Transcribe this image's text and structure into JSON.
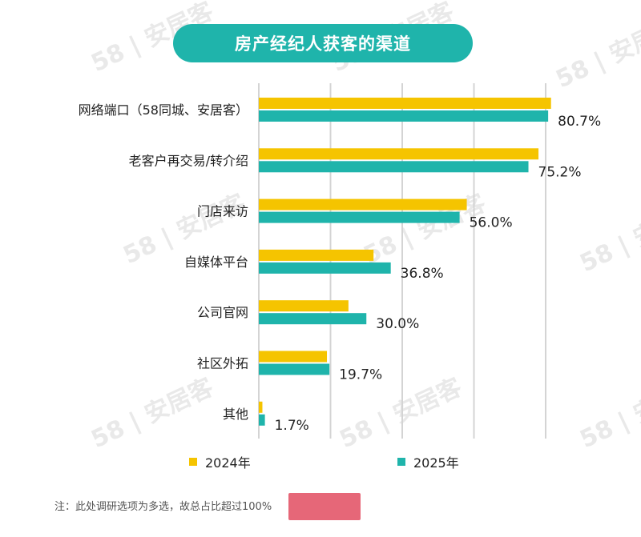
{
  "title": "房产经纪人获客的渠道",
  "watermark": "58 | 安居客",
  "note": "注：此处调研选项为多选，故总占比超过100%",
  "legend": [
    {
      "label": "2024年",
      "color": "#f5c400"
    },
    {
      "label": "2025年",
      "color": "#1fb4ab"
    }
  ],
  "chart_data": {
    "type": "bar",
    "orientation": "horizontal",
    "title": "房产经纪人获客的渠道",
    "categories": [
      "网络端口（58同城、安居客）",
      "老客户再交易/转介绍",
      "门店来访",
      "自媒体平台",
      "公司官网",
      "社区外拓",
      "其他"
    ],
    "series": [
      {
        "name": "2024年",
        "color": "#f5c400",
        "values": [
          81.5,
          78.0,
          58.0,
          32.0,
          25.0,
          19.0,
          1.0
        ],
        "labels": [
          "",
          "",
          "",
          "",
          "",
          "",
          ""
        ]
      },
      {
        "name": "2025年",
        "color": "#1fb4ab",
        "values": [
          80.7,
          75.2,
          56.0,
          36.8,
          30.0,
          19.7,
          1.7
        ],
        "labels": [
          "80.7%",
          "75.2%",
          "56.0%",
          "36.8%",
          "30.0%",
          "19.7%",
          "1.7%"
        ]
      }
    ],
    "xlim": [
      0,
      90
    ],
    "gridlines": [
      0,
      20,
      40,
      60,
      80
    ],
    "grid": true,
    "legend_position": "bottom"
  }
}
